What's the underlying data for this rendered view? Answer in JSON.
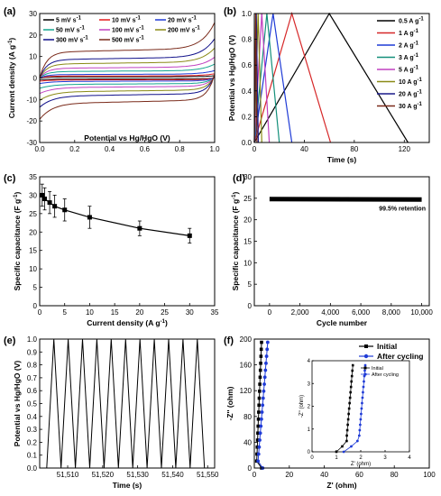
{
  "chart_data": [
    {
      "panel": "(a)",
      "type": "line",
      "xlabel": "Potential vs Hg/HgO (V)",
      "ylabel": "Current density (A g",
      "ylabel_sup": "-1",
      "ylabel_end": ")",
      "xlim": [
        0.0,
        1.0
      ],
      "ylim": [
        -30,
        30
      ],
      "xticks": [
        "0.0",
        "0.2",
        "0.4",
        "0.6",
        "0.8",
        "1.0"
      ],
      "yticks": [
        "-30",
        "-20",
        "-10",
        "0",
        "10",
        "20",
        "30"
      ],
      "legend_position": "top",
      "series": [
        {
          "name": "5 mV s",
          "sup": "-1",
          "amp": 0.5,
          "color": "#000000"
        },
        {
          "name": "10 mV s",
          "sup": "-1",
          "amp": 0.9,
          "color": "#e41a1c"
        },
        {
          "name": "20 mV s",
          "sup": "-1",
          "amp": 1.6,
          "color": "#1f3bd6"
        },
        {
          "name": "50 mV s",
          "sup": "-1",
          "amp": 3.0,
          "color": "#13a68f"
        },
        {
          "name": "100 mV s",
          "sup": "-1",
          "amp": 4.5,
          "color": "#c040c0"
        },
        {
          "name": "200 mV s",
          "sup": "-1",
          "amp": 6.5,
          "color": "#8a8a16"
        },
        {
          "name": "300 mV s",
          "sup": "-1",
          "amp": 8.5,
          "color": "#10108a"
        },
        {
          "name": "500 mV s",
          "sup": "-1",
          "amp": 12.0,
          "color": "#7a2a1a"
        }
      ]
    },
    {
      "panel": "(b)",
      "type": "line",
      "xlabel": "Time (s)",
      "ylabel": "Potential vs Hg/HgO (V)",
      "xlim": [
        0,
        140
      ],
      "ylim": [
        0.0,
        1.0
      ],
      "xticks": [
        "0",
        "40",
        "80",
        "120"
      ],
      "yticks": [
        "0.0",
        "0.2",
        "0.4",
        "0.6",
        "0.8",
        "1.0"
      ],
      "legend_position": "right",
      "series": [
        {
          "name": "0.5 A g",
          "sup": "-1",
          "period": 123,
          "peak": 60,
          "color": "#000000"
        },
        {
          "name": "1 A g",
          "sup": "-1",
          "period": 61,
          "peak": 30,
          "color": "#d62728"
        },
        {
          "name": "2 A g",
          "sup": "-1",
          "period": 30,
          "peak": 15,
          "color": "#1f3bd6"
        },
        {
          "name": "3 A g",
          "sup": "-1",
          "period": 20,
          "peak": 10,
          "color": "#138f7a"
        },
        {
          "name": "5 A g",
          "sup": "-1",
          "period": 12,
          "peak": 6,
          "color": "#c040c0"
        },
        {
          "name": "10 A g",
          "sup": "-1",
          "period": 6,
          "peak": 3,
          "color": "#8a8a16"
        },
        {
          "name": "20 A g",
          "sup": "-1",
          "period": 3.2,
          "peak": 1.6,
          "color": "#1a1a8a"
        },
        {
          "name": "30 A g",
          "sup": "-1",
          "period": 2.1,
          "peak": 1.05,
          "color": "#7a2a1a"
        }
      ]
    },
    {
      "panel": "(c)",
      "type": "scatter",
      "xlabel": "Current density (A g",
      "xlabel_sup": "-1",
      "xlabel_end": ")",
      "ylabel": "Specific capacitance (F g",
      "ylabel_sup": "-1",
      "ylabel_end": ")",
      "xlim": [
        0,
        35
      ],
      "ylim": [
        0,
        35
      ],
      "xticks": [
        "0",
        "5",
        "10",
        "15",
        "20",
        "25",
        "30",
        "35"
      ],
      "yticks": [
        "0",
        "5",
        "10",
        "15",
        "20",
        "25",
        "30",
        "35"
      ],
      "x": [
        0.5,
        1,
        2,
        3,
        5,
        10,
        20,
        30
      ],
      "y": [
        30,
        29,
        28,
        27,
        26,
        24,
        21,
        19
      ],
      "err": [
        3,
        3,
        3,
        3,
        3,
        3,
        2,
        2
      ]
    },
    {
      "panel": "(d)",
      "type": "line",
      "xlabel": "Cycle number",
      "ylabel": "Specific capacitance (F g",
      "ylabel_sup": "-1",
      "ylabel_end": ")",
      "xlim": [
        -1000,
        10500
      ],
      "ylim": [
        0,
        30
      ],
      "xticks": [
        "0",
        "2,000",
        "4,000",
        "6,000",
        "8,000",
        "10,000"
      ],
      "yticks": [
        "0",
        "5",
        "10",
        "15",
        "20",
        "25",
        "30"
      ],
      "annotation": "99.5% retention",
      "start_value": 24.8,
      "end_value": 24.7
    },
    {
      "panel": "(e)",
      "type": "line",
      "xlabel": "Time (s)",
      "ylabel": "Potential vs Hg/HgO (V)",
      "xlim": [
        51502,
        51552
      ],
      "ylim": [
        0.0,
        1.0
      ],
      "xticks": [
        "51,510",
        "51,520",
        "51,530",
        "51,540",
        "51,550"
      ],
      "yticks": [
        "0.0",
        "0.1",
        "0.2",
        "0.3",
        "0.4",
        "0.5",
        "0.6",
        "0.7",
        "0.8",
        "0.9",
        "1.0"
      ],
      "cycle_start": 51504,
      "period": 4.1,
      "cycles": 11
    },
    {
      "panel": "(f)",
      "type": "scatter",
      "xlabel": "Z' (ohm)",
      "ylabel": "-Z'' (ohm)",
      "xlim": [
        0,
        100
      ],
      "ylim": [
        0,
        200
      ],
      "xticks": [
        "0",
        "20",
        "40",
        "60",
        "80",
        "100"
      ],
      "yticks": [
        "0",
        "40",
        "80",
        "120",
        "160",
        "200"
      ],
      "legend_position": "top-right",
      "series": [
        {
          "name": "Initial",
          "color": "#000000"
        },
        {
          "name": "After cycling",
          "color": "#1f3bd6"
        }
      ],
      "inset": {
        "xlabel": "Z' (ohm)",
        "ylabel": "-Z'' (ohm)",
        "xlim": [
          0,
          4
        ],
        "ylim": [
          0,
          4
        ],
        "xticks": [
          "0",
          "1",
          "2",
          "3",
          "4"
        ],
        "yticks": [
          "0",
          "1",
          "2",
          "3",
          "4"
        ],
        "legend": [
          "Initial",
          "After cycling"
        ]
      }
    }
  ]
}
